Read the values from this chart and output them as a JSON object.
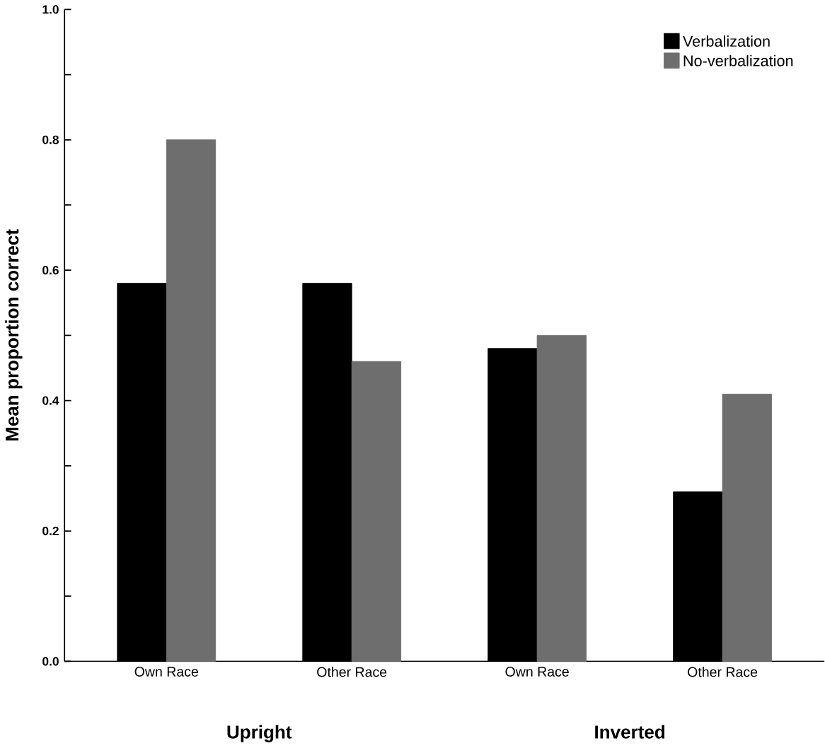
{
  "chart_data": {
    "type": "bar",
    "ylabel": "Mean proportion correct",
    "categories": [
      "Own Race",
      "Other Race",
      "Own Race",
      "Other Race"
    ],
    "series": [
      {
        "name": "Verbalization",
        "color": "#000000",
        "values": [
          0.58,
          0.58,
          0.48,
          0.26
        ]
      },
      {
        "name": "No-verbalization",
        "color": "#6e6e6e",
        "values": [
          0.8,
          0.46,
          0.5,
          0.41
        ]
      }
    ],
    "ylim": [
      0,
      1
    ],
    "yticks": [
      {
        "value": 0,
        "label": "0.0"
      },
      {
        "value": 0.1,
        "label": null
      },
      {
        "value": 0.2,
        "label": "0.2"
      },
      {
        "value": 0.3,
        "label": null
      },
      {
        "value": 0.4,
        "label": "0.4"
      },
      {
        "value": 0.5,
        "label": null
      },
      {
        "value": 0.6,
        "label": "0.6"
      },
      {
        "value": 0.7,
        "label": null
      },
      {
        "value": 0.8,
        "label": "0.8"
      },
      {
        "value": 0.9,
        "label": null
      },
      {
        "value": 1,
        "label": "1.0"
      }
    ],
    "legend": "top right",
    "annotations": [
      "Upright",
      "Inverted"
    ]
  }
}
